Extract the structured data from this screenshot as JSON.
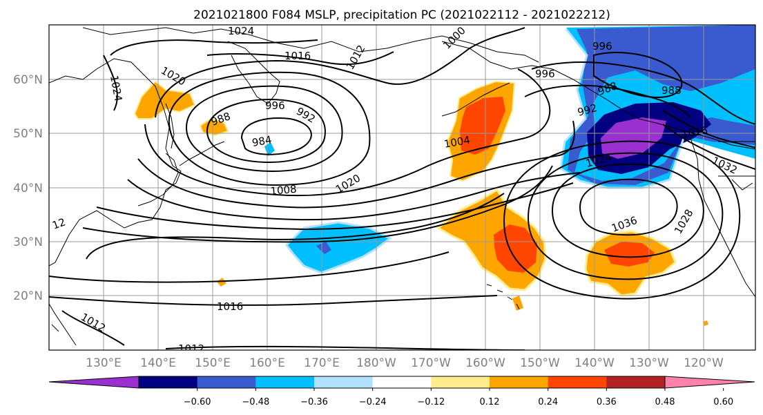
{
  "title": "2021021800 F084 MSLP, precipitation PC (2021022112 - 2021022212)",
  "lat_labels": [
    "60°N",
    "50°N",
    "40°N",
    "30°N",
    "20°N"
  ],
  "lon_labels": [
    "130°E",
    "140°E",
    "150°E",
    "160°E",
    "170°E",
    "180°W",
    "170°W",
    "160°W",
    "150°W",
    "140°W",
    "130°W",
    "120°W"
  ],
  "isobar_labels": [
    "1024",
    "1020",
    "1024",
    "1000",
    "1016",
    "1012",
    "996",
    "988",
    "996",
    "992",
    "984",
    "988",
    "996",
    "988",
    "992",
    "1004",
    "1024",
    "1016",
    "1032",
    "1008",
    "1020",
    "1036",
    "1028",
    "12",
    "1016",
    "1012",
    "1012"
  ],
  "colorbar": {
    "ticks": [
      "−0.60",
      "−0.48",
      "−0.36",
      "−0.24",
      "−0.12",
      "0.12",
      "0.24",
      "0.36",
      "0.48",
      "0.60"
    ],
    "colors": [
      "#9b30d0",
      "#000080",
      "#3a5bd0",
      "#00bfff",
      "#b0e2ff",
      "#ffffff",
      "#ffec8b",
      "#ffa500",
      "#ff4500",
      "#b22222",
      "#ff82ab"
    ]
  },
  "shading_colors": {
    "purple": "#9b30d0",
    "navy": "#000080",
    "royal": "#3a5bd0",
    "sky": "#00bfff",
    "light_sky": "#b0e2ff",
    "gold": "#ffec8b",
    "orange": "#ffa500",
    "red_orange": "#ff4500"
  }
}
